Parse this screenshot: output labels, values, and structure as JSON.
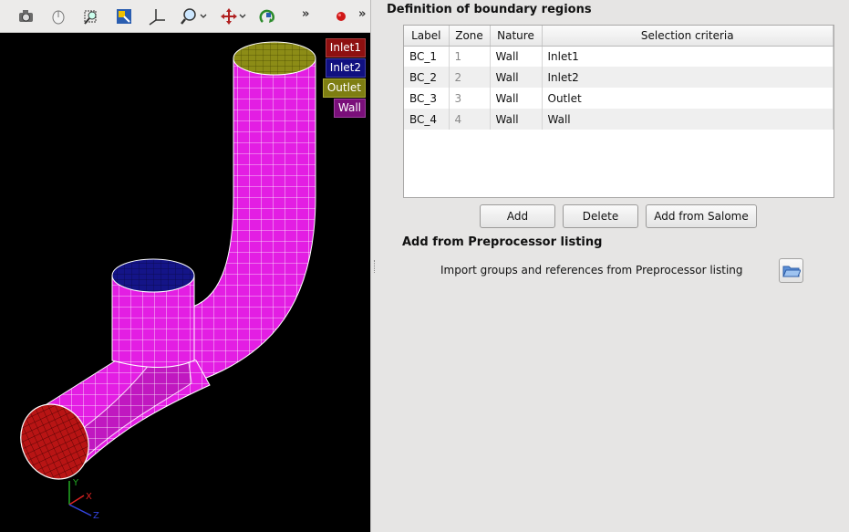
{
  "viewer": {
    "toolbar_icons": [
      "camera-icon",
      "reset-view-icon",
      "fit-area-icon",
      "fit-all-icon",
      "axes-icon",
      "zoom-icon",
      "pan-icon",
      "rotate-icon",
      "record-icon"
    ],
    "overflow_label": "»",
    "legend": [
      {
        "label": "Inlet1",
        "color": "#8e1010"
      },
      {
        "label": "Inlet2",
        "color": "#101080"
      },
      {
        "label": "Outlet",
        "color": "#7e7e12"
      },
      {
        "label": "Wall",
        "color": "#7a0f7a"
      }
    ],
    "mesh_colors": {
      "wall": "#e020e0",
      "inlet1": "#b81414",
      "inlet2": "#141488",
      "outlet": "#8c8c16"
    },
    "axes_labels": {
      "x": "X",
      "y": "Y",
      "z": "Z"
    }
  },
  "panel": {
    "title": "Definition of boundary regions",
    "table": {
      "headers": [
        "Label",
        "Zone",
        "Nature",
        "Selection criteria"
      ],
      "rows": [
        {
          "label": "BC_1",
          "zone": "1",
          "nature": "Wall",
          "criteria": "Inlet1"
        },
        {
          "label": "BC_2",
          "zone": "2",
          "nature": "Wall",
          "criteria": "Inlet2"
        },
        {
          "label": "BC_3",
          "zone": "3",
          "nature": "Wall",
          "criteria": "Outlet"
        },
        {
          "label": "BC_4",
          "zone": "4",
          "nature": "Wall",
          "criteria": "Wall"
        }
      ]
    },
    "buttons": {
      "add": "Add",
      "delete": "Delete",
      "add_salome": "Add from Salome"
    },
    "preprocessor": {
      "title": "Add from Preprocessor listing",
      "text": "Import groups and references from Preprocessor listing",
      "browse_icon": "folder-open-icon"
    }
  }
}
